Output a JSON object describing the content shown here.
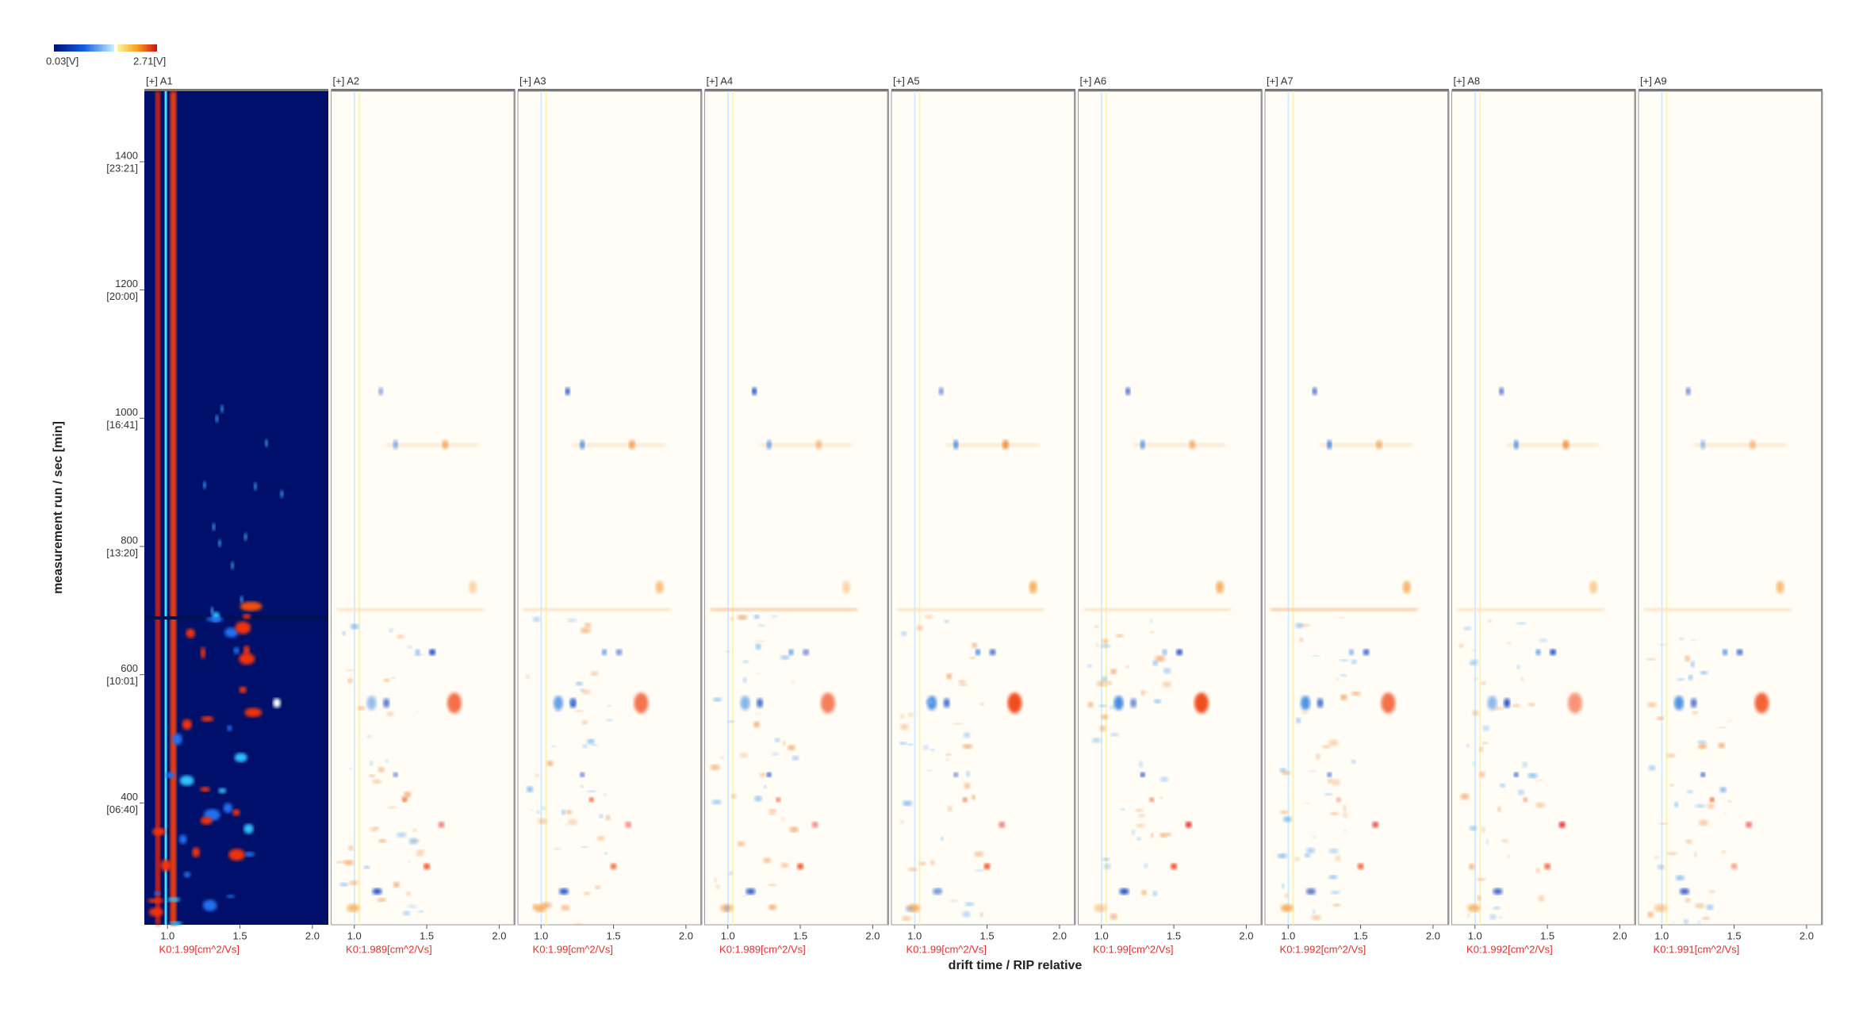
{
  "chart_data": {
    "type": "ims-difference",
    "colorbar": {
      "min_label": "0.03[V]",
      "max_label": "2.71[V]"
    },
    "ylabel": "measurement run / sec [min]",
    "xlabel": "drift time / RIP relative",
    "ylim": [
      210,
      1510
    ],
    "yticks": [
      {
        "value": 400,
        "label": "400",
        "time": "[06:40]"
      },
      {
        "value": 600,
        "label": "600",
        "time": "[10:01]"
      },
      {
        "value": 800,
        "label": "800",
        "time": "[13:20]"
      },
      {
        "value": 1000,
        "label": "1000",
        "time": "[16:41]"
      },
      {
        "value": 1200,
        "label": "1200",
        "time": "[20:00]"
      },
      {
        "value": 1400,
        "label": "1400",
        "time": "[23:21]"
      }
    ],
    "xlim": [
      0.84,
      2.11
    ],
    "xticks": [
      {
        "value": 1,
        "label": "1.0"
      },
      1.5,
      {
        "value": 2,
        "label": "2.0"
      }
    ],
    "panels": [
      {
        "name": "[+] A1",
        "k0": "K0:1.99[cm^2/Vs]"
      },
      {
        "name": "[+] A2",
        "k0": "K0:1.989[cm^2/Vs]"
      },
      {
        "name": "[+] A3",
        "k0": "K0:1.99[cm^2/Vs]"
      },
      {
        "name": "[+] A4",
        "k0": "K0:1.989[cm^2/Vs]"
      },
      {
        "name": "[+] A5",
        "k0": "K0:1.99[cm^2/Vs]"
      },
      {
        "name": "[+] A6",
        "k0": "K0:1.99[cm^2/Vs]"
      },
      {
        "name": "[+] A7",
        "k0": "K0:1.992[cm^2/Vs]"
      },
      {
        "name": "[+] A8",
        "k0": "K0:1.992[cm^2/Vs]"
      },
      {
        "name": "[+] A9",
        "k0": "K0:1.991[cm^2/Vs]"
      }
    ]
  }
}
